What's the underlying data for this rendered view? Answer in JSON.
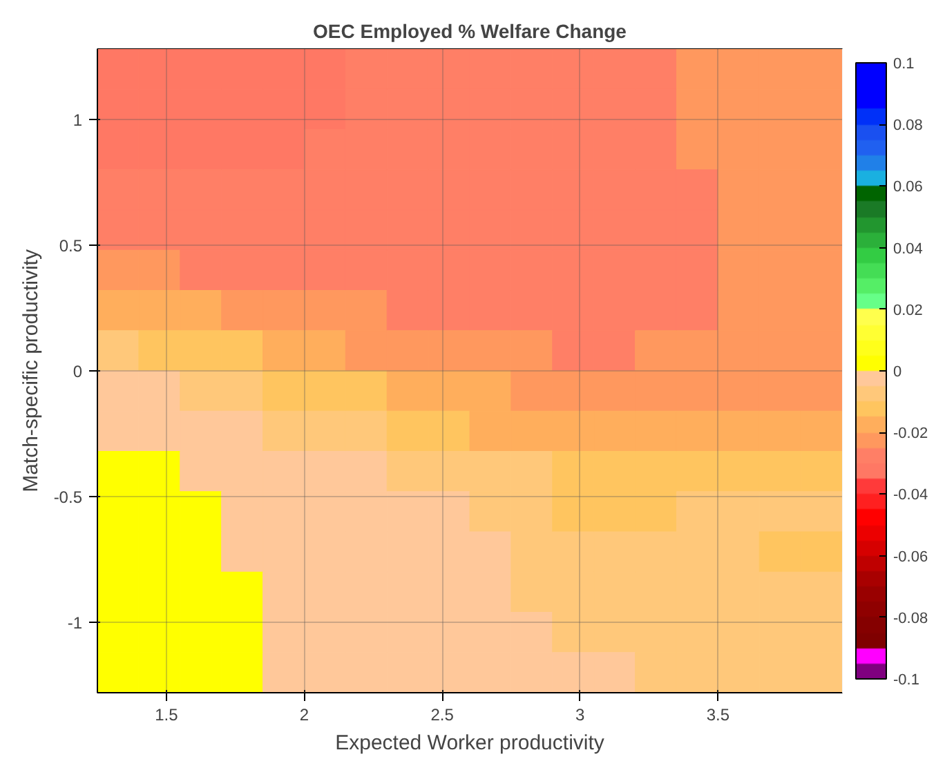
{
  "chart_data": {
    "type": "heatmap",
    "title": "OEC Employed % Welfare Change",
    "xlabel": "Expected Worker productivity",
    "ylabel": "Match-specific productivity",
    "x": [
      1.325,
      1.475,
      1.625,
      1.775,
      1.925,
      2.075,
      2.225,
      2.375,
      2.525,
      2.675,
      2.825,
      2.975,
      3.125,
      3.275,
      3.425,
      3.575,
      3.725,
      3.875
    ],
    "y": [
      1.2,
      1.04,
      0.88,
      0.72,
      0.56,
      0.4,
      0.24,
      0.08,
      -0.08,
      -0.24,
      -0.4,
      -0.56,
      -0.72,
      -0.88,
      -1.04,
      -1.2
    ],
    "xlim": [
      1.25,
      3.95
    ],
    "ylim": [
      -1.28,
      1.28
    ],
    "xticks": [
      1.5,
      2,
      2.5,
      3,
      3.5
    ],
    "yticks": [
      -1,
      -0.5,
      0,
      0.5,
      1
    ],
    "clim": [
      -0.1,
      0.1
    ],
    "cticks": [
      -0.1,
      -0.08,
      -0.06,
      -0.04,
      -0.02,
      0,
      0.02,
      0.04,
      0.06,
      0.08,
      0.1
    ],
    "colors": [
      "#7f007f",
      "#ff00ff",
      "#7f0000",
      "#850000",
      "#8f0000",
      "#990000",
      "#a80000",
      "#bf0000",
      "#d60000",
      "#ec0000",
      "#ff0000",
      "#ff2020",
      "#ff3a3a",
      "#ff7864",
      "#ff7f66",
      "#ff985e",
      "#ffae5c",
      "#ffc55f",
      "#ffc87a",
      "#ffc89a",
      "#ffff00",
      "#ffff1a",
      "#ffff33",
      "#ffff4d",
      "#66ff88",
      "#55ee66",
      "#44dd55",
      "#33cc44",
      "#2bb03a",
      "#22962f",
      "#1a7a26",
      "#006400",
      "#1ab0e0",
      "#2080e8",
      "#2060f0",
      "#1a50f0",
      "#0030f8",
      "#0000ff",
      "#0000ff",
      "#0000ff"
    ],
    "grid": true,
    "cells": [
      [
        -0.0325,
        -0.0325,
        -0.0325,
        -0.0325,
        -0.0325,
        -0.0325,
        -0.0275,
        -0.0275,
        -0.0275,
        -0.0275,
        -0.0275,
        -0.0275,
        -0.0275,
        -0.0275,
        -0.0225,
        -0.0225,
        -0.0225,
        -0.0225
      ],
      [
        -0.0325,
        -0.0325,
        -0.0325,
        -0.0325,
        -0.0325,
        -0.0325,
        -0.0275,
        -0.0275,
        -0.0275,
        -0.0275,
        -0.0275,
        -0.0275,
        -0.0275,
        -0.0275,
        -0.0225,
        -0.0225,
        -0.0225,
        -0.0225
      ],
      [
        -0.0325,
        -0.0325,
        -0.0325,
        -0.0325,
        -0.0325,
        -0.0275,
        -0.0275,
        -0.0275,
        -0.0275,
        -0.0275,
        -0.0275,
        -0.0275,
        -0.0275,
        -0.0275,
        -0.0225,
        -0.0225,
        -0.0225,
        -0.0225
      ],
      [
        -0.0275,
        -0.0275,
        -0.0275,
        -0.0275,
        -0.0275,
        -0.0275,
        -0.0275,
        -0.0275,
        -0.0275,
        -0.0275,
        -0.0275,
        -0.0275,
        -0.0275,
        -0.0275,
        -0.0275,
        -0.0225,
        -0.0225,
        -0.0225
      ],
      [
        -0.0275,
        -0.0275,
        -0.0275,
        -0.0275,
        -0.0275,
        -0.0275,
        -0.0275,
        -0.0275,
        -0.0275,
        -0.0275,
        -0.0275,
        -0.0275,
        -0.0275,
        -0.0275,
        -0.0275,
        -0.0225,
        -0.0225,
        -0.0225
      ],
      [
        -0.0225,
        -0.0225,
        -0.0275,
        -0.0275,
        -0.0275,
        -0.0275,
        -0.0275,
        -0.0275,
        -0.0275,
        -0.0275,
        -0.0275,
        -0.0275,
        -0.0275,
        -0.0275,
        -0.0275,
        -0.0225,
        -0.0225,
        -0.0225
      ],
      [
        -0.0175,
        -0.0175,
        -0.0175,
        -0.0225,
        -0.0225,
        -0.0225,
        -0.0225,
        -0.0275,
        -0.0275,
        -0.0275,
        -0.0275,
        -0.0275,
        -0.0275,
        -0.0275,
        -0.0275,
        -0.0225,
        -0.0225,
        -0.0225
      ],
      [
        -0.0075,
        -0.0125,
        -0.0125,
        -0.0125,
        -0.0175,
        -0.0175,
        -0.0225,
        -0.0225,
        -0.0225,
        -0.0225,
        -0.0225,
        -0.0275,
        -0.0275,
        -0.0225,
        -0.0225,
        -0.0225,
        -0.0225,
        -0.0225
      ],
      [
        -0.0025,
        -0.0025,
        -0.0075,
        -0.0075,
        -0.0125,
        -0.0125,
        -0.0125,
        -0.0175,
        -0.0175,
        -0.0175,
        -0.0225,
        -0.0225,
        -0.0225,
        -0.0225,
        -0.0225,
        -0.0225,
        -0.0225,
        -0.0225
      ],
      [
        -0.0025,
        -0.0025,
        -0.0025,
        -0.0025,
        -0.0075,
        -0.0075,
        -0.0075,
        -0.0125,
        -0.0125,
        -0.0175,
        -0.0175,
        -0.0175,
        -0.0175,
        -0.0175,
        -0.0175,
        -0.0175,
        -0.0175,
        -0.0175
      ],
      [
        0.0025,
        0.0025,
        -0.0025,
        -0.0025,
        -0.0025,
        -0.0025,
        -0.0025,
        -0.0075,
        -0.0075,
        -0.0075,
        -0.0075,
        -0.0125,
        -0.0125,
        -0.0125,
        -0.0125,
        -0.0125,
        -0.0125,
        -0.0125
      ],
      [
        0.0025,
        0.0025,
        0.0025,
        -0.0025,
        -0.0025,
        -0.0025,
        -0.0025,
        -0.0025,
        -0.0025,
        -0.0075,
        -0.0075,
        -0.0125,
        -0.0125,
        -0.0125,
        -0.0075,
        -0.0075,
        -0.0075,
        -0.0075
      ],
      [
        0.0025,
        0.0025,
        0.0025,
        -0.0025,
        -0.0025,
        -0.0025,
        -0.0025,
        -0.0025,
        -0.0025,
        -0.0025,
        -0.0075,
        -0.0075,
        -0.0075,
        -0.0075,
        -0.0075,
        -0.0075,
        -0.0125,
        -0.0125
      ],
      [
        0.0025,
        0.0025,
        0.0025,
        0.0025,
        -0.0025,
        -0.0025,
        -0.0025,
        -0.0025,
        -0.0025,
        -0.0025,
        -0.0075,
        -0.0075,
        -0.0075,
        -0.0075,
        -0.0075,
        -0.0075,
        -0.0075,
        -0.0075
      ],
      [
        0.0025,
        0.0025,
        0.0025,
        0.0025,
        -0.0025,
        -0.0025,
        -0.0025,
        -0.0025,
        -0.0025,
        -0.0025,
        -0.0025,
        -0.0075,
        -0.0075,
        -0.0075,
        -0.0075,
        -0.0075,
        -0.0075,
        -0.0075
      ],
      [
        0.0025,
        0.0025,
        0.0025,
        0.0025,
        -0.0025,
        -0.0025,
        -0.0025,
        -0.0025,
        -0.0025,
        -0.0025,
        -0.0025,
        -0.0025,
        -0.0025,
        -0.0075,
        -0.0075,
        -0.0075,
        -0.0075,
        -0.0075
      ]
    ]
  }
}
